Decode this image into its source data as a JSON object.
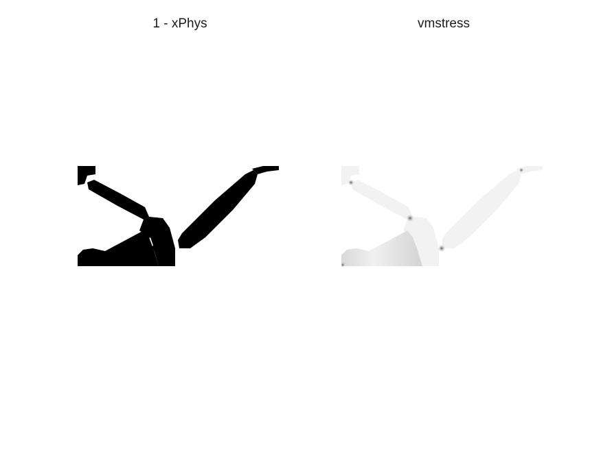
{
  "figure": {
    "background": "#ffffff",
    "panels": [
      {
        "id": "density",
        "title": "1 - xPhys",
        "fill_color": "#000000"
      },
      {
        "id": "stress",
        "title": "vmstress",
        "fill_color": "#f2f2f2",
        "shade_color": "#c8c8c8",
        "hotspot_color": "#1a1a1a"
      }
    ]
  }
}
